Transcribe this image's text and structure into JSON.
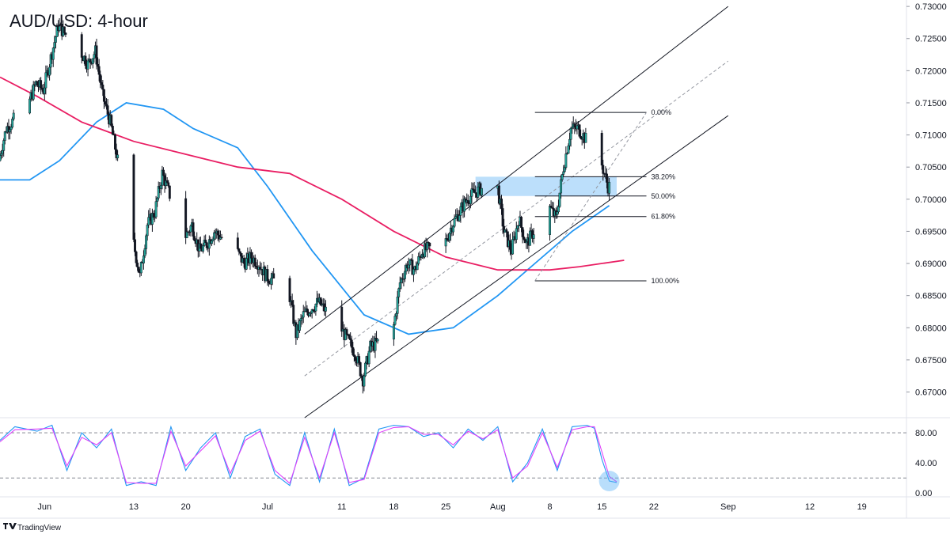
{
  "title": "AUD/USD: 4-hour",
  "brand": {
    "name": "TradingView",
    "icon": "tradingview-logo-icon"
  },
  "colors": {
    "up": "#26a69a",
    "down": "#ef5350",
    "candle": "#131722",
    "ma_fast": "#2196f3",
    "ma_slow": "#e91e63",
    "stoch_k": "#2196f3",
    "stoch_d": "#e040fb",
    "zone": "#90caf9",
    "marker": "#64b5f6"
  },
  "chart_data": [
    {
      "type": "candlestick",
      "title": "AUD/USD: 4-hour",
      "y_axis_ticks": [
        "0.73000",
        "0.72500",
        "0.72000",
        "0.71500",
        "0.71000",
        "0.70500",
        "0.70000",
        "0.69500",
        "0.69000",
        "0.68500",
        "0.68000",
        "0.67500",
        "0.67000"
      ],
      "ylim": [
        0.666,
        0.731
      ],
      "x_axis_ticks": [
        "Jun",
        "13",
        "20",
        "Jul",
        "11",
        "18",
        "25",
        "Aug",
        "8",
        "15",
        "22",
        "Sep",
        "12",
        "19"
      ],
      "x_tick_dates": [
        "2022-06-01",
        "2022-06-13",
        "2022-06-20",
        "2022-07-01",
        "2022-07-11",
        "2022-07-18",
        "2022-07-25",
        "2022-08-01",
        "2022-08-08",
        "2022-08-15",
        "2022-08-22",
        "2022-09-01",
        "2022-09-12",
        "2022-09-19"
      ],
      "price_path": [
        [
          "2022-05-26",
          0.706
        ],
        [
          "2022-05-27",
          0.711
        ],
        [
          "2022-05-30",
          0.715
        ],
        [
          "2022-05-31",
          0.718
        ],
        [
          "2022-06-01",
          0.717
        ],
        [
          "2022-06-02",
          0.722
        ],
        [
          "2022-06-03",
          0.727
        ],
        [
          "2022-06-06",
          0.723
        ],
        [
          "2022-06-07",
          0.721
        ],
        [
          "2022-06-08",
          0.723
        ],
        [
          "2022-06-09",
          0.716
        ],
        [
          "2022-06-10",
          0.712
        ],
        [
          "2022-06-13",
          0.694
        ],
        [
          "2022-06-14",
          0.688
        ],
        [
          "2022-06-15",
          0.696
        ],
        [
          "2022-06-16",
          0.698
        ],
        [
          "2022-06-17",
          0.704
        ],
        [
          "2022-06-20",
          0.694
        ],
        [
          "2022-06-21",
          0.696
        ],
        [
          "2022-06-22",
          0.692
        ],
        [
          "2022-06-23",
          0.693
        ],
        [
          "2022-06-24",
          0.695
        ],
        [
          "2022-06-27",
          0.692
        ],
        [
          "2022-06-28",
          0.69
        ],
        [
          "2022-06-29",
          0.691
        ],
        [
          "2022-06-30",
          0.69
        ],
        [
          "2022-07-01",
          0.688
        ],
        [
          "2022-07-04",
          0.686
        ],
        [
          "2022-07-05",
          0.679
        ],
        [
          "2022-07-06",
          0.682
        ],
        [
          "2022-07-07",
          0.683
        ],
        [
          "2022-07-08",
          0.684
        ],
        [
          "2022-07-11",
          0.68
        ],
        [
          "2022-07-12",
          0.678
        ],
        [
          "2022-07-13",
          0.676
        ],
        [
          "2022-07-14",
          0.672
        ],
        [
          "2022-07-15",
          0.677
        ],
        [
          "2022-07-18",
          0.679
        ],
        [
          "2022-07-19",
          0.687
        ],
        [
          "2022-07-20",
          0.69
        ],
        [
          "2022-07-21",
          0.689
        ],
        [
          "2022-07-22",
          0.692
        ],
        [
          "2022-07-25",
          0.693
        ],
        [
          "2022-07-26",
          0.696
        ],
        [
          "2022-07-27",
          0.698
        ],
        [
          "2022-07-28",
          0.7
        ],
        [
          "2022-07-29",
          0.701
        ],
        [
          "2022-08-01",
          0.703
        ],
        [
          "2022-08-02",
          0.695
        ],
        [
          "2022-08-03",
          0.692
        ],
        [
          "2022-08-04",
          0.697
        ],
        [
          "2022-08-05",
          0.693
        ],
        [
          "2022-08-08",
          0.699
        ],
        [
          "2022-08-09",
          0.697
        ],
        [
          "2022-08-10",
          0.705
        ],
        [
          "2022-08-11",
          0.711
        ],
        [
          "2022-08-12",
          0.711
        ],
        [
          "2022-08-15",
          0.706
        ],
        [
          "2022-08-16",
          0.702
        ]
      ],
      "series": [
        {
          "type": "line",
          "points": [
            [
              "2022-05-26",
              0.703
            ],
            [
              "2022-05-30",
              0.703
            ],
            [
              "2022-06-03",
              0.706
            ],
            [
              "2022-06-08",
              0.712
            ],
            [
              "2022-06-12",
              0.715
            ],
            [
              "2022-06-17",
              0.714
            ],
            [
              "2022-06-21",
              0.711
            ],
            [
              "2022-06-27",
              0.708
            ],
            [
              "2022-07-01",
              0.702
            ],
            [
              "2022-07-07",
              0.692
            ],
            [
              "2022-07-14",
              0.682
            ],
            [
              "2022-07-20",
              0.679
            ],
            [
              "2022-07-26",
              0.68
            ],
            [
              "2022-08-01",
              0.685
            ],
            [
              "2022-08-06",
              0.69
            ],
            [
              "2022-08-11",
              0.695
            ],
            [
              "2022-08-16",
              0.699
            ]
          ]
        },
        {
          "type": "line",
          "points": [
            [
              "2022-05-26",
              0.719
            ],
            [
              "2022-05-31",
              0.716
            ],
            [
              "2022-06-06",
              0.712
            ],
            [
              "2022-06-13",
              0.709
            ],
            [
              "2022-06-20",
              0.707
            ],
            [
              "2022-06-27",
              0.705
            ],
            [
              "2022-07-04",
              0.704
            ],
            [
              "2022-07-11",
              0.7
            ],
            [
              "2022-07-18",
              0.695
            ],
            [
              "2022-07-25",
              0.691
            ],
            [
              "2022-08-01",
              0.689
            ],
            [
              "2022-08-08",
              0.689
            ],
            [
              "2022-08-12",
              0.6895
            ],
            [
              "2022-08-18",
              0.6905
            ]
          ]
        }
      ],
      "channel": {
        "upper": [
          [
            "2022-07-06",
            0.679
          ],
          [
            "2022-09-01",
            0.73
          ]
        ],
        "lower": [
          [
            "2022-07-06",
            0.666
          ],
          [
            "2022-09-01",
            0.713
          ]
        ],
        "mid": [
          [
            "2022-07-06",
            0.6725
          ],
          [
            "2022-09-01",
            0.7215
          ]
        ]
      },
      "fibonacci": {
        "labels": [
          "0.00%",
          "38.20%",
          "50.00%",
          "61.80%",
          "100.00%"
        ],
        "levels": [
          0.7135,
          0.7035,
          0.7005,
          0.6973,
          0.6873
        ],
        "x_start": "2022-08-06",
        "x_end": "2022-08-21"
      },
      "zone": {
        "x_start": "2022-07-29",
        "x_end": "2022-08-17",
        "y_low": 0.7005,
        "y_high": 0.7035
      }
    },
    {
      "type": "line",
      "y_axis_ticks": [
        "80.00",
        "40.00",
        "0.00"
      ],
      "ylim": [
        -5,
        100
      ],
      "reference_lines": [
        80,
        20
      ],
      "highlight": {
        "date": "2022-08-16",
        "value": 16
      },
      "series": [
        {
          "type": "line",
          "points": [
            [
              "2022-05-26",
              70
            ],
            [
              "2022-05-28",
              88
            ],
            [
              "2022-05-31",
              82
            ],
            [
              "2022-06-02",
              90
            ],
            [
              "2022-06-04",
              30
            ],
            [
              "2022-06-06",
              80
            ],
            [
              "2022-06-08",
              60
            ],
            [
              "2022-06-10",
              85
            ],
            [
              "2022-06-12",
              10
            ],
            [
              "2022-06-14",
              15
            ],
            [
              "2022-06-16",
              10
            ],
            [
              "2022-06-18",
              88
            ],
            [
              "2022-06-20",
              30
            ],
            [
              "2022-06-22",
              60
            ],
            [
              "2022-06-24",
              80
            ],
            [
              "2022-06-26",
              20
            ],
            [
              "2022-06-28",
              75
            ],
            [
              "2022-06-30",
              85
            ],
            [
              "2022-07-02",
              25
            ],
            [
              "2022-07-04",
              10
            ],
            [
              "2022-07-06",
              80
            ],
            [
              "2022-07-08",
              15
            ],
            [
              "2022-07-10",
              85
            ],
            [
              "2022-07-12",
              10
            ],
            [
              "2022-07-14",
              20
            ],
            [
              "2022-07-16",
              85
            ],
            [
              "2022-07-18",
              90
            ],
            [
              "2022-07-20",
              88
            ],
            [
              "2022-07-22",
              75
            ],
            [
              "2022-07-24",
              80
            ],
            [
              "2022-07-26",
              60
            ],
            [
              "2022-07-28",
              85
            ],
            [
              "2022-07-30",
              70
            ],
            [
              "2022-08-01",
              88
            ],
            [
              "2022-08-03",
              15
            ],
            [
              "2022-08-05",
              40
            ],
            [
              "2022-08-07",
              85
            ],
            [
              "2022-08-09",
              30
            ],
            [
              "2022-08-11",
              88
            ],
            [
              "2022-08-13",
              90
            ],
            [
              "2022-08-14",
              86
            ],
            [
              "2022-08-15",
              45
            ],
            [
              "2022-08-16",
              16
            ],
            [
              "2022-08-17",
              14
            ]
          ]
        },
        {
          "type": "line",
          "points": [
            [
              "2022-05-26",
              68
            ],
            [
              "2022-05-28",
              84
            ],
            [
              "2022-05-31",
              85
            ],
            [
              "2022-06-02",
              86
            ],
            [
              "2022-06-04",
              36
            ],
            [
              "2022-06-06",
              74
            ],
            [
              "2022-06-08",
              64
            ],
            [
              "2022-06-10",
              80
            ],
            [
              "2022-06-12",
              14
            ],
            [
              "2022-06-14",
              13
            ],
            [
              "2022-06-16",
              13
            ],
            [
              "2022-06-18",
              82
            ],
            [
              "2022-06-20",
              36
            ],
            [
              "2022-06-22",
              56
            ],
            [
              "2022-06-24",
              76
            ],
            [
              "2022-06-26",
              26
            ],
            [
              "2022-06-28",
              70
            ],
            [
              "2022-06-30",
              82
            ],
            [
              "2022-07-02",
              30
            ],
            [
              "2022-07-04",
              13
            ],
            [
              "2022-07-06",
              74
            ],
            [
              "2022-07-08",
              20
            ],
            [
              "2022-07-10",
              80
            ],
            [
              "2022-07-12",
              14
            ],
            [
              "2022-07-14",
              18
            ],
            [
              "2022-07-16",
              80
            ],
            [
              "2022-07-18",
              87
            ],
            [
              "2022-07-20",
              88
            ],
            [
              "2022-07-22",
              78
            ],
            [
              "2022-07-24",
              78
            ],
            [
              "2022-07-26",
              64
            ],
            [
              "2022-07-28",
              82
            ],
            [
              "2022-07-30",
              72
            ],
            [
              "2022-08-01",
              84
            ],
            [
              "2022-08-03",
              20
            ],
            [
              "2022-08-05",
              36
            ],
            [
              "2022-08-07",
              80
            ],
            [
              "2022-08-09",
              34
            ],
            [
              "2022-08-11",
              84
            ],
            [
              "2022-08-13",
              88
            ],
            [
              "2022-08-14",
              88
            ],
            [
              "2022-08-15",
              55
            ],
            [
              "2022-08-16",
              22
            ],
            [
              "2022-08-17",
              15
            ]
          ]
        }
      ]
    }
  ]
}
